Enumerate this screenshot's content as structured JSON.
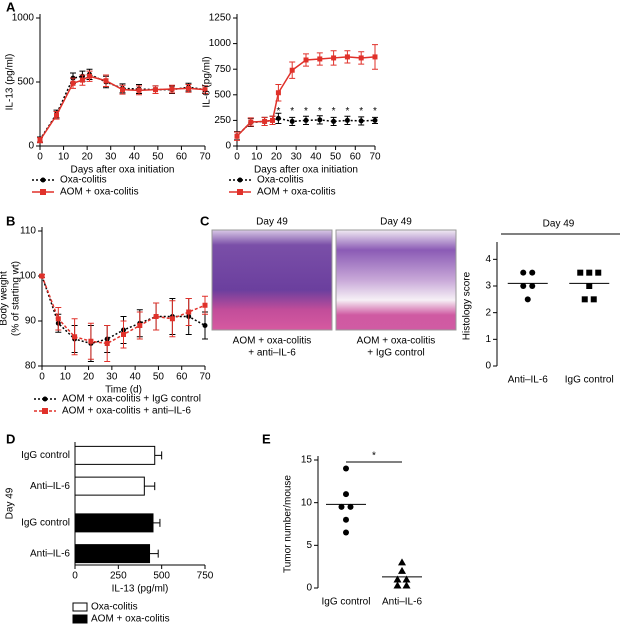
{
  "panel_labels": [
    "A",
    "B",
    "C",
    "D",
    "E"
  ],
  "images": [
    {
      "title": "Day 49",
      "caption": [
        "AOM + oxa-colitis",
        "+ anti–IL-6"
      ]
    },
    {
      "title": "Day 49",
      "caption": [
        "AOM + oxa-colitis",
        "+ IgG control"
      ]
    }
  ],
  "chart_data": [
    {
      "type": "line",
      "x": [
        0,
        7,
        14,
        18,
        21,
        28,
        35,
        42,
        49,
        56,
        63,
        70
      ],
      "xlim": [
        0,
        70
      ],
      "xticks": [
        0,
        10,
        20,
        30,
        40,
        50,
        60,
        70
      ],
      "ylim": [
        0,
        1000
      ],
      "yticks": [
        0,
        500,
        1000
      ],
      "xlabel": "Days after oxa initiation",
      "ylabel": [
        "IL-13 (pg/ml)"
      ],
      "series": [
        {
          "name": "Oxa-colitis",
          "color": "#000000",
          "dash": "2,2",
          "marker": "circle",
          "values": [
            50,
            250,
            530,
            545,
            560,
            500,
            450,
            445,
            440,
            440,
            460,
            440
          ],
          "errors": [
            20,
            30,
            40,
            40,
            40,
            45,
            35,
            35,
            30,
            30,
            30,
            30
          ]
        },
        {
          "name": "AOM + oxa-colitis",
          "color": "#e0312a",
          "dash": "",
          "marker": "square",
          "values": [
            45,
            240,
            490,
            515,
            545,
            510,
            440,
            435,
            440,
            445,
            450,
            440
          ],
          "errors": [
            20,
            30,
            40,
            40,
            40,
            45,
            35,
            35,
            30,
            30,
            30,
            30
          ]
        }
      ]
    },
    {
      "type": "line",
      "x": [
        0,
        7,
        14,
        18,
        21,
        28,
        35,
        42,
        49,
        56,
        63,
        70
      ],
      "xlim": [
        0,
        70
      ],
      "xticks": [
        0,
        10,
        20,
        30,
        40,
        50,
        60,
        70
      ],
      "ylim": [
        0,
        1250
      ],
      "yticks": [
        0,
        250,
        500,
        750,
        1000,
        1250
      ],
      "xlabel": "Days after oxa initiation",
      "ylabel": [
        "IL-6 (pg/ml)"
      ],
      "series": [
        {
          "name": "Oxa-colitis",
          "color": "#000000",
          "dash": "2,2",
          "marker": "circle",
          "values": [
            100,
            230,
            240,
            250,
            270,
            240,
            250,
            255,
            240,
            250,
            245,
            250
          ],
          "errors": [
            40,
            40,
            40,
            40,
            50,
            40,
            40,
            40,
            40,
            40,
            40,
            30
          ]
        },
        {
          "name": "AOM + oxa-colitis",
          "color": "#e0312a",
          "dash": "",
          "marker": "square",
          "values": [
            95,
            235,
            240,
            250,
            520,
            740,
            840,
            850,
            860,
            870,
            860,
            870
          ],
          "errors": [
            40,
            40,
            40,
            40,
            80,
            80,
            60,
            60,
            70,
            60,
            60,
            120
          ]
        }
      ],
      "annotations": [
        {
          "text": "*",
          "x": 21,
          "y": 340
        },
        {
          "text": "*",
          "x": 28,
          "y": 340
        },
        {
          "text": "*",
          "x": 35,
          "y": 340
        },
        {
          "text": "*",
          "x": 42,
          "y": 340
        },
        {
          "text": "*",
          "x": 49,
          "y": 340
        },
        {
          "text": "*",
          "x": 56,
          "y": 340
        },
        {
          "text": "*",
          "x": 63,
          "y": 340
        },
        {
          "text": "*",
          "x": 70,
          "y": 340
        }
      ]
    },
    {
      "type": "line",
      "x": [
        0,
        7,
        14,
        21,
        28,
        35,
        42,
        49,
        56,
        63,
        70
      ],
      "xlim": [
        0,
        70
      ],
      "xticks": [
        0,
        10,
        20,
        30,
        40,
        50,
        60,
        70
      ],
      "ylim": [
        80,
        110
      ],
      "yticks": [
        80,
        90,
        100,
        110
      ],
      "xlabel": "Time (d)",
      "ylabel": [
        "Body weight",
        "(% of starting wt)"
      ],
      "series": [
        {
          "name": "AOM + oxa-colitis + IgG control",
          "color": "#000000",
          "dash": "2,2",
          "marker": "circle",
          "values": [
            100,
            89.5,
            86,
            85,
            86,
            88,
            89.5,
            91,
            91,
            91,
            89
          ],
          "errors": [
            0.3,
            2,
            3,
            4,
            3,
            3,
            3,
            3,
            4,
            4,
            3
          ]
        },
        {
          "name": "AOM + oxa-colitis + anti–IL-6",
          "color": "#e0312a",
          "dash": "3,2",
          "marker": "square",
          "values": [
            100,
            90.5,
            86.5,
            85.5,
            85,
            87,
            89,
            91,
            90.5,
            92,
            93.5
          ],
          "errors": [
            0.3,
            2.5,
            4,
            4,
            4,
            3,
            3,
            3,
            4,
            3,
            2
          ]
        }
      ]
    },
    {
      "type": "dotplot",
      "title": "Day 49",
      "categories": [
        "Anti–IL-6",
        "IgG control"
      ],
      "ylim": [
        0,
        4.5
      ],
      "yticks": [
        0,
        1,
        2,
        3,
        4
      ],
      "ylabel": [
        "Histology score"
      ],
      "groups": [
        {
          "marker": "circle",
          "values": [
            3.5,
            3.5,
            3,
            3,
            2.5
          ],
          "mean": 3.1
        },
        {
          "marker": "square",
          "values": [
            3.5,
            3.5,
            3.5,
            3,
            2.5,
            2.5
          ],
          "mean": 3.1
        }
      ]
    },
    {
      "type": "barh",
      "group_label": "Day 49",
      "categories": [
        "IgG control",
        "Anti–IL-6",
        "IgG control",
        "Anti–IL-6"
      ],
      "xlim": [
        0,
        750
      ],
      "xticks": [
        0,
        250,
        500,
        750
      ],
      "xlabel": "IL-13 (pg/ml)",
      "series": [
        {
          "name": "Oxa-colitis",
          "color": "#ffffff",
          "values": [
            460,
            400,
            null,
            null
          ],
          "errors": [
            40,
            60,
            null,
            null
          ]
        },
        {
          "name": "AOM + oxa-colitis",
          "color": "#000000",
          "values": [
            null,
            null,
            450,
            430
          ],
          "errors": [
            null,
            null,
            40,
            50
          ]
        }
      ]
    },
    {
      "type": "dotplot",
      "categories": [
        "IgG control",
        "Anti–IL-6"
      ],
      "ylim": [
        0,
        15
      ],
      "yticks": [
        0,
        5,
        10,
        15
      ],
      "ylabel": [
        "Tumor number/mouse"
      ],
      "significance": "*",
      "groups": [
        {
          "marker": "circle",
          "values": [
            14,
            11,
            9.5,
            9.5,
            8,
            6.5
          ],
          "mean": 9.8
        },
        {
          "marker": "triangle",
          "values": [
            3,
            2,
            1,
            1,
            0.3,
            0.3
          ],
          "mean": 1.3
        }
      ]
    }
  ]
}
